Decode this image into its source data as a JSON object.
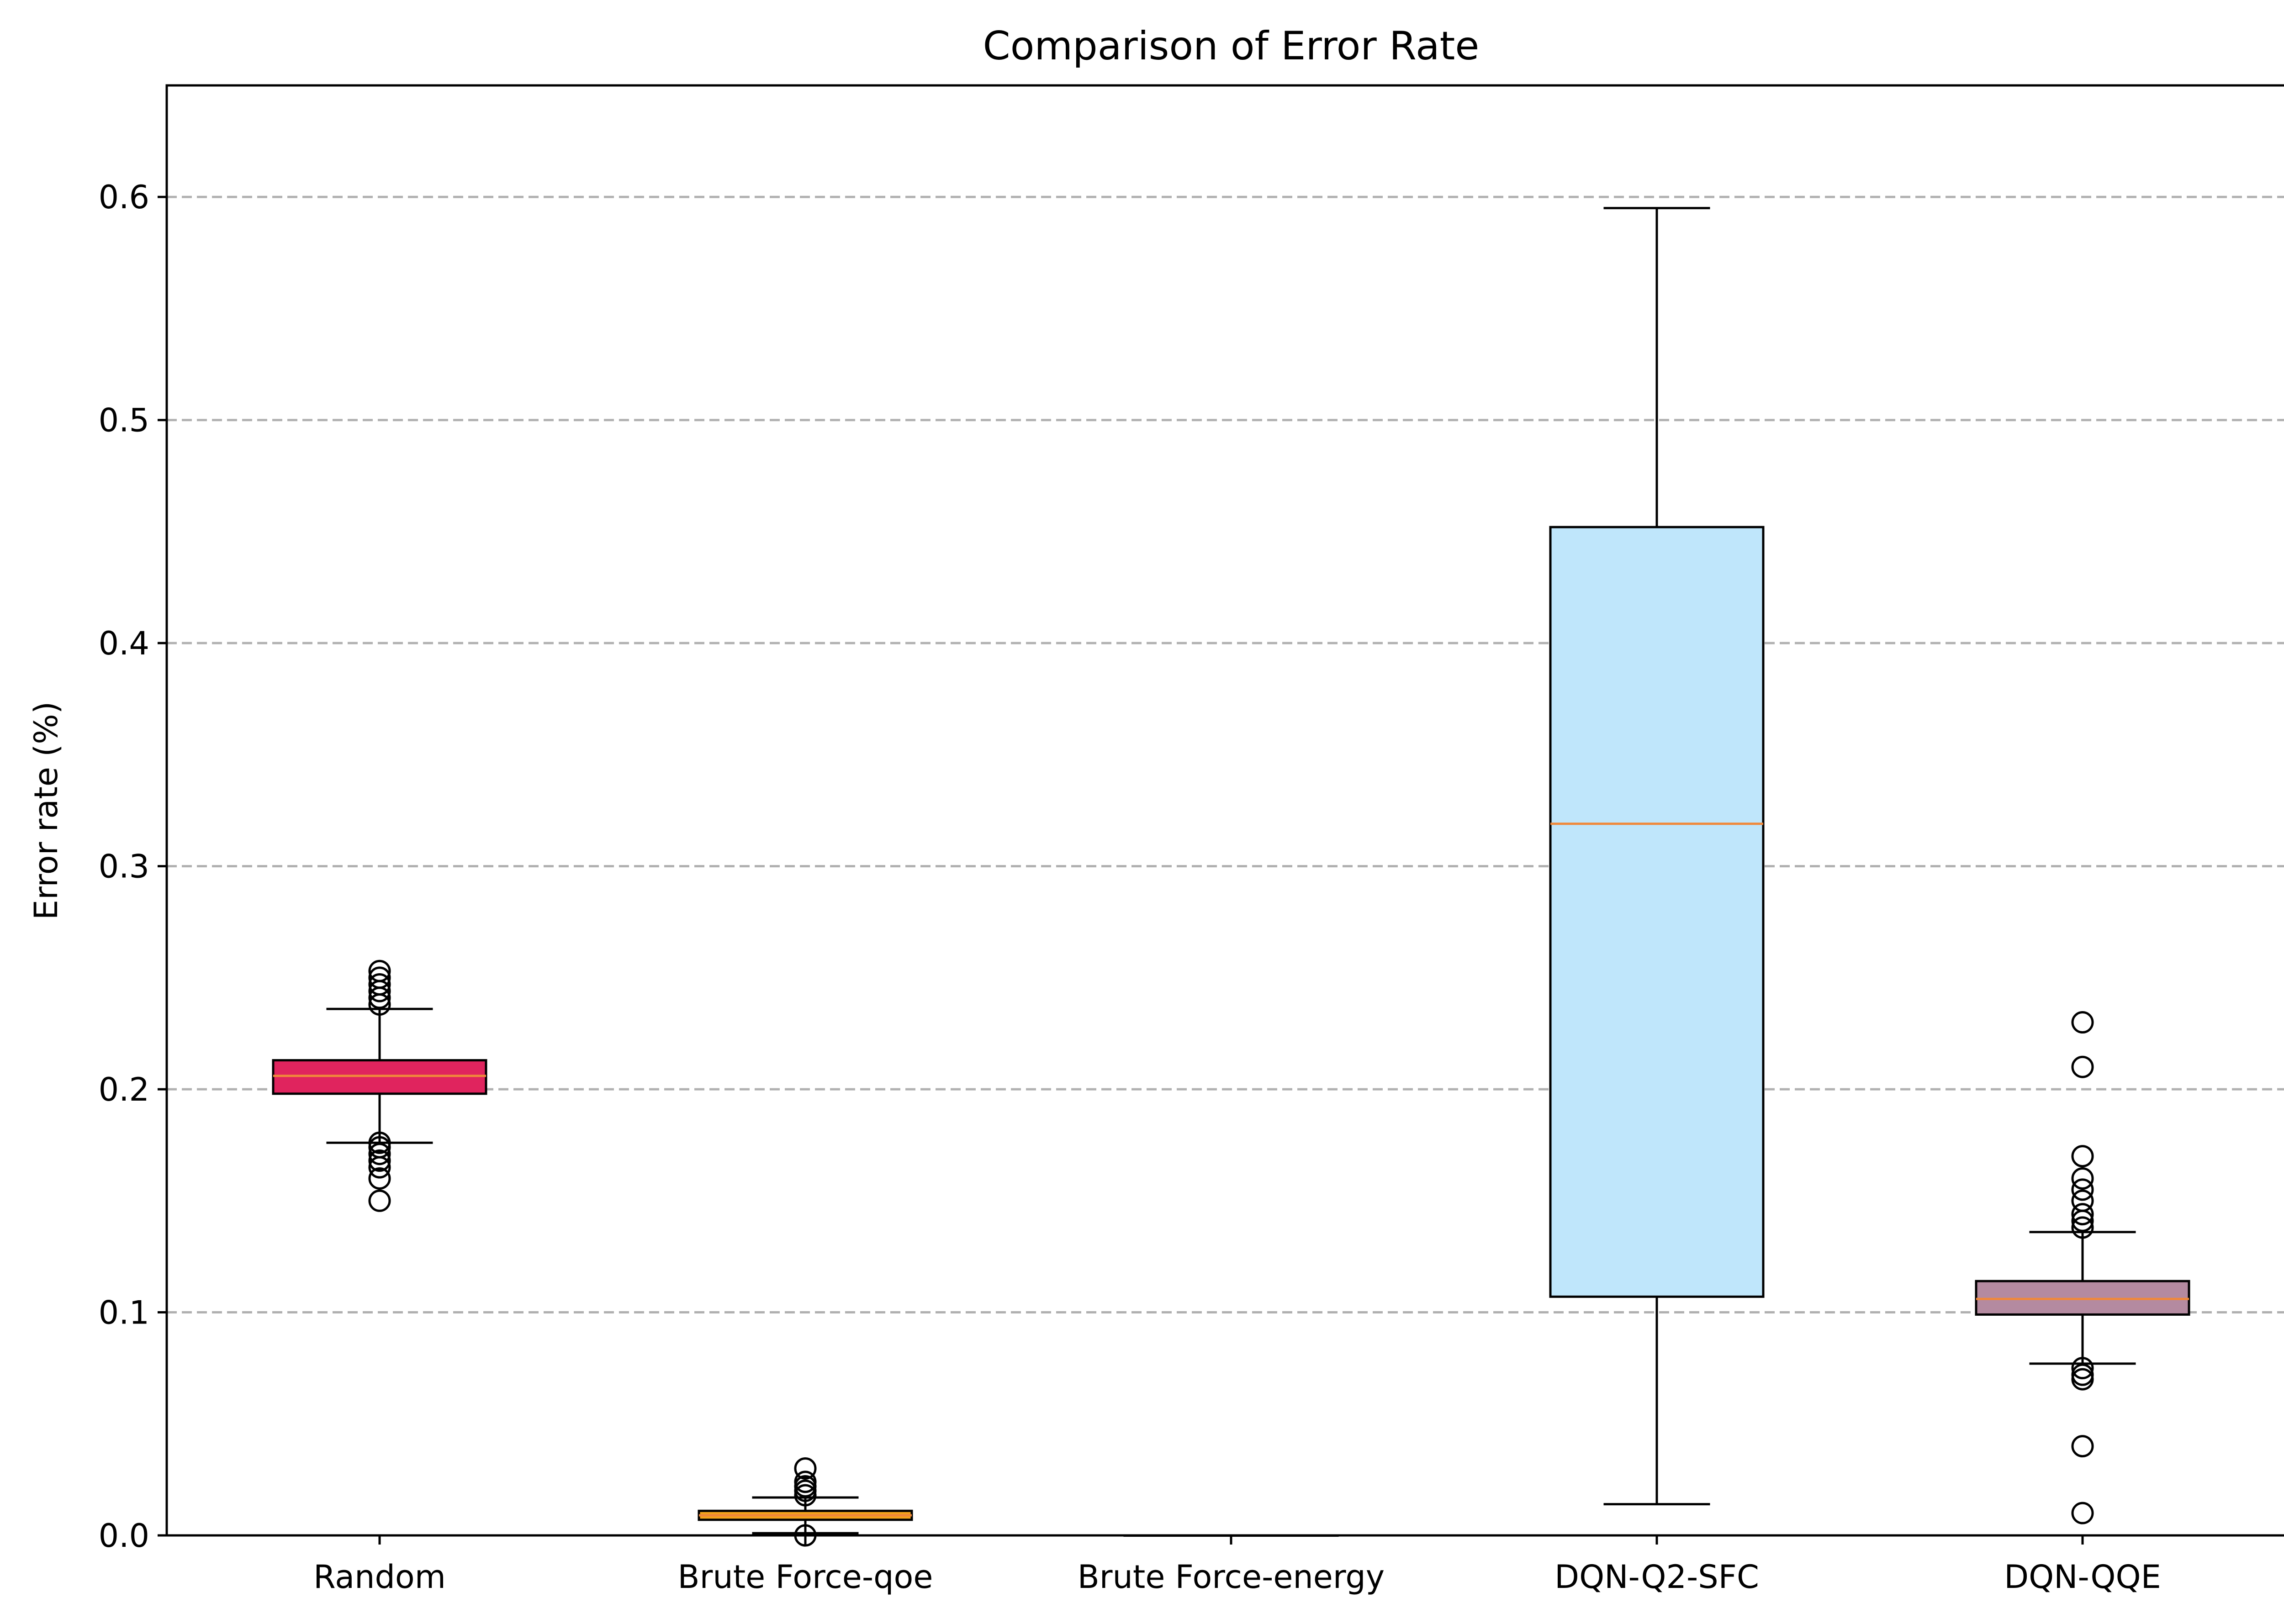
{
  "chart_data": {
    "type": "box",
    "title": "Comparison of Error Rate",
    "xlabel": "",
    "ylabel": "Error rate (%)",
    "ylim": [
      0,
      0.65
    ],
    "yticks": [
      0.0,
      0.1,
      0.2,
      0.3,
      0.4,
      0.5,
      0.6
    ],
    "ytick_labels": [
      "0.0",
      "0.1",
      "0.2",
      "0.3",
      "0.4",
      "0.5",
      "0.6"
    ],
    "grid": "horizontal dashed",
    "categories": [
      "Random",
      "Brute Force-qoe",
      "Brute Force-energy",
      "DQN-Q2-SFC",
      "DQN-QQE"
    ],
    "boxes": [
      {
        "whisker_low": 0.176,
        "q1": 0.198,
        "median": 0.206,
        "q3": 0.213,
        "whisker_high": 0.236,
        "fliers": [
          0.15,
          0.16,
          0.165,
          0.168,
          0.171,
          0.174,
          0.176,
          0.238,
          0.241,
          0.244,
          0.247,
          0.25,
          0.253
        ],
        "color": "#e0245e"
      },
      {
        "whisker_low": 0.001,
        "q1": 0.007,
        "median": 0.009,
        "q3": 0.011,
        "whisker_high": 0.017,
        "fliers": [
          0.0,
          0.018,
          0.02,
          0.022,
          0.024,
          0.03
        ],
        "color": "#f2a21b"
      },
      {
        "whisker_low": 0.0,
        "q1": 0.0,
        "median": 0.0,
        "q3": 0.0,
        "whisker_high": 0.0,
        "fliers": [],
        "color": "#f2a21b"
      },
      {
        "whisker_low": 0.014,
        "q1": 0.107,
        "median": 0.319,
        "q3": 0.452,
        "whisker_high": 0.595,
        "fliers": [],
        "color": "#bfe6fb"
      },
      {
        "whisker_low": 0.077,
        "q1": 0.099,
        "median": 0.106,
        "q3": 0.114,
        "whisker_high": 0.136,
        "fliers": [
          0.01,
          0.04,
          0.07,
          0.072,
          0.075,
          0.138,
          0.141,
          0.144,
          0.15,
          0.155,
          0.16,
          0.17,
          0.21,
          0.23
        ],
        "color": "#b48aa0"
      }
    ],
    "median_color": "#f0883a"
  }
}
